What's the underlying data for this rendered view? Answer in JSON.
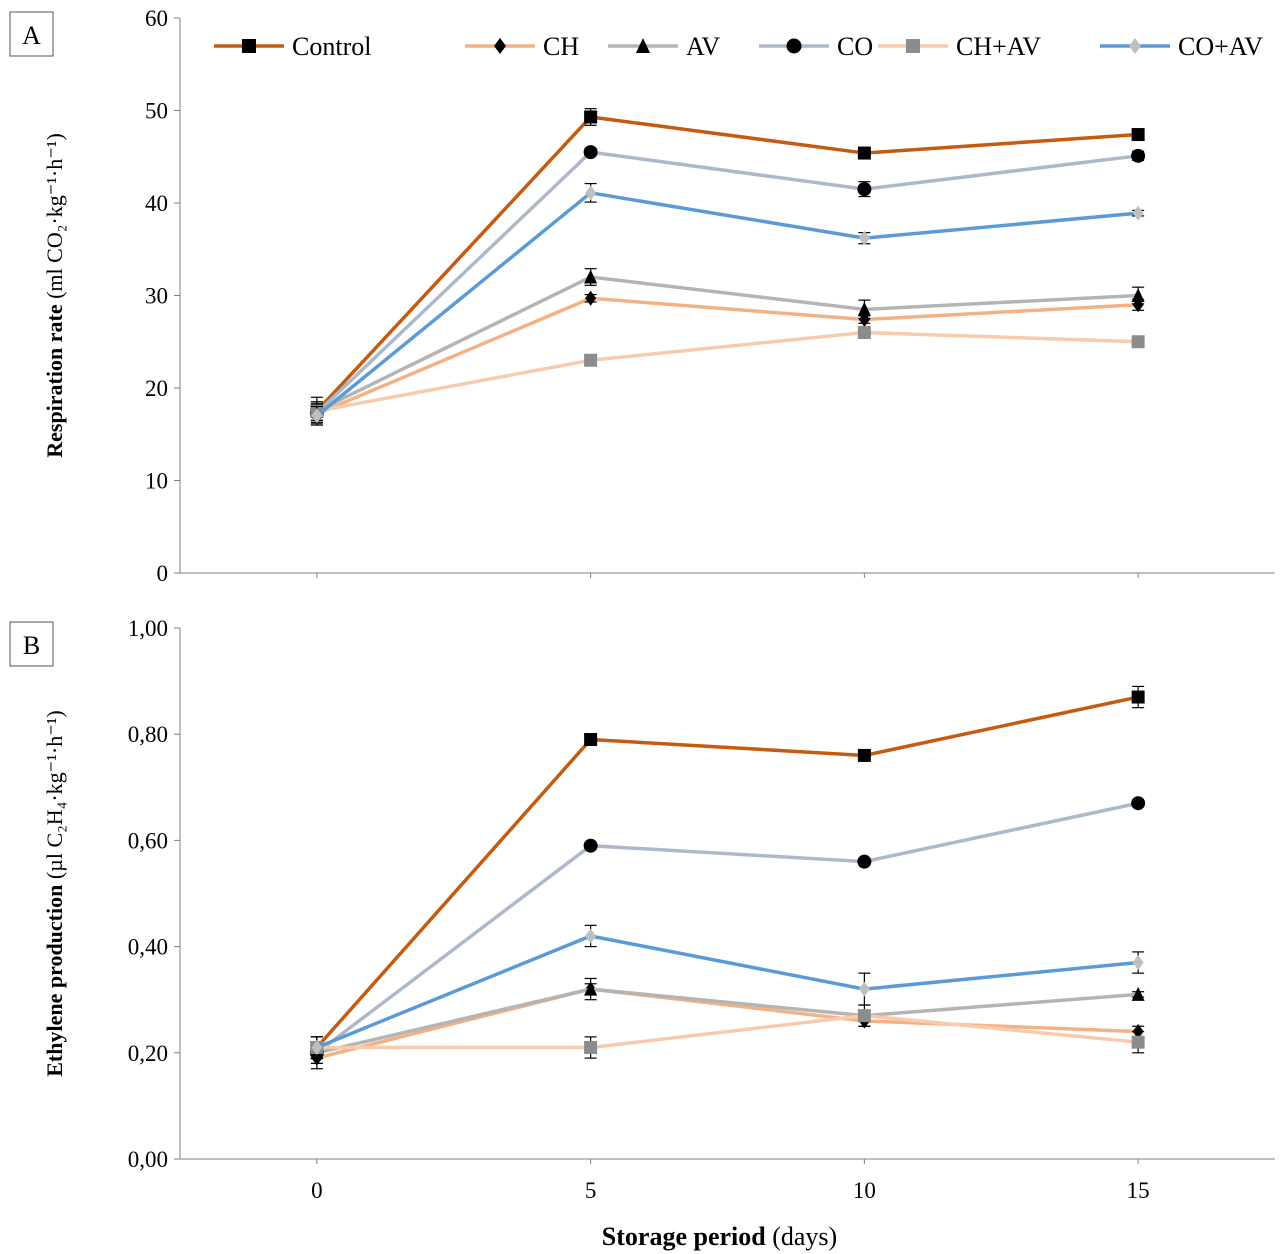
{
  "chart_data": [
    {
      "type": "line",
      "panel_label": "A",
      "ylabel_bold": "Respiration rate",
      "ylabel_unit": "(ml CO₂·kg⁻¹·h⁻¹)",
      "ylim": [
        0,
        60
      ],
      "yticks": [
        "0",
        "10",
        "20",
        "30",
        "40",
        "50",
        "60"
      ],
      "yticks_values": [
        0,
        10,
        20,
        30,
        40,
        50,
        60
      ],
      "xlim": [
        -2.5,
        17.5
      ],
      "x": [
        0,
        5,
        10,
        15
      ],
      "legend_position": "top",
      "series": [
        {
          "name": "Control",
          "color": "#c55a11",
          "marker": "square",
          "marker_color": "#000000",
          "values": [
            17.5,
            49.3,
            45.4,
            47.4
          ],
          "errors": [
            1.5,
            0.9,
            0.4,
            0.4
          ]
        },
        {
          "name": "CH",
          "color": "#f4b183",
          "marker": "diamond",
          "marker_color": "#000000",
          "values": [
            17.2,
            29.7,
            27.4,
            29.0
          ],
          "errors": [
            1.0,
            0.4,
            0.4,
            0.6
          ]
        },
        {
          "name": "AV",
          "color": "#b4b4b4",
          "marker": "triangle",
          "marker_color": "#000000",
          "values": [
            17.5,
            32.0,
            28.5,
            30.0
          ],
          "errors": [
            1.0,
            0.9,
            1.0,
            0.9
          ]
        },
        {
          "name": "CO",
          "color": "#adb9ca",
          "marker": "circle",
          "marker_color": "#000000",
          "values": [
            17.3,
            45.5,
            41.5,
            45.1
          ],
          "errors": [
            1.0,
            0.4,
            0.8,
            0.5
          ]
        },
        {
          "name": "CH+AV",
          "color": "#f8cbad",
          "marker": "square",
          "marker_color": "#8c8c8c",
          "values": [
            17.5,
            23.0,
            26.0,
            25.0
          ],
          "errors": [
            1.0,
            0.4,
            0.4,
            0.4
          ]
        },
        {
          "name": "CO+AV",
          "color": "#5b9bd5",
          "marker": "diamond",
          "marker_color": "#bfbfbf",
          "values": [
            17.0,
            41.1,
            36.2,
            38.9
          ],
          "errors": [
            1.0,
            1.0,
            0.6,
            0.3
          ]
        }
      ]
    },
    {
      "type": "line",
      "panel_label": "B",
      "ylabel_bold": "Ethylene production",
      "ylabel_unit": "(µl C₂H₄·kg⁻¹·h⁻¹)",
      "ylim": [
        0,
        1
      ],
      "yticks": [
        "0,00",
        "0,20",
        "0,40",
        "0,60",
        "0,80",
        "1,00"
      ],
      "yticks_values": [
        0,
        0.2,
        0.4,
        0.6,
        0.8,
        1.0
      ],
      "xlim": [
        -2.5,
        17.5
      ],
      "x": [
        0,
        5,
        10,
        15
      ],
      "xticks": [
        "0",
        "5",
        "10",
        "15"
      ],
      "xlabel_bold": "Storage period",
      "xlabel_unit": "(days)",
      "series": [
        {
          "name": "Control",
          "color": "#c55a11",
          "marker": "square",
          "marker_color": "#000000",
          "values": [
            0.21,
            0.79,
            0.76,
            0.87
          ],
          "errors": [
            0.02,
            0.005,
            0.005,
            0.02
          ]
        },
        {
          "name": "CH",
          "color": "#f4b183",
          "marker": "diamond",
          "marker_color": "#000000",
          "values": [
            0.19,
            0.32,
            0.26,
            0.24
          ],
          "errors": [
            0.02,
            0.01,
            0.01,
            0.01
          ]
        },
        {
          "name": "AV",
          "color": "#b4b4b4",
          "marker": "triangle",
          "marker_color": "#000000",
          "values": [
            0.2,
            0.32,
            0.27,
            0.31
          ],
          "errors": [
            0.02,
            0.02,
            0.01,
            0.005
          ]
        },
        {
          "name": "CO",
          "color": "#adb9ca",
          "marker": "circle",
          "marker_color": "#000000",
          "values": [
            0.2,
            0.59,
            0.56,
            0.67
          ],
          "errors": [
            0.02,
            0.005,
            0.005,
            0.005
          ]
        },
        {
          "name": "CH+AV",
          "color": "#f8cbad",
          "marker": "square",
          "marker_color": "#8c8c8c",
          "values": [
            0.21,
            0.21,
            0.27,
            0.22
          ],
          "errors": [
            0.02,
            0.02,
            0.02,
            0.02
          ]
        },
        {
          "name": "CO+AV",
          "color": "#5b9bd5",
          "marker": "diamond",
          "marker_color": "#bfbfbf",
          "values": [
            0.21,
            0.42,
            0.32,
            0.37
          ],
          "errors": [
            0.02,
            0.02,
            0.03,
            0.02
          ]
        }
      ]
    }
  ]
}
